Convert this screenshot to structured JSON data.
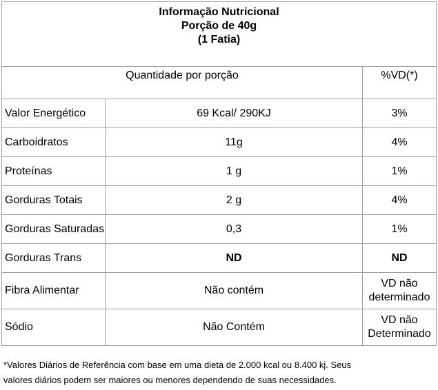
{
  "title": {
    "line1": "Informação Nutricional",
    "line2": "Porção de 40g",
    "line3": "(1 Fatia)"
  },
  "header": {
    "quantity": "Quantidade por porção",
    "vd": "%VD(*)"
  },
  "rows": [
    {
      "name": "Valor Energético",
      "qty": "69 Kcal/ 290KJ",
      "vd": "3%"
    },
    {
      "name": "Carboidratos",
      "qty": "11g",
      "vd": "4%"
    },
    {
      "name": "Proteínas",
      "qty": "1 g",
      "vd": "1%"
    },
    {
      "name": "Gorduras Totais",
      "qty": "2 g",
      "vd": "4%"
    },
    {
      "name": "Gorduras Saturadas",
      "qty": "0,3",
      "vd": "1%"
    },
    {
      "name": "Gorduras Trans",
      "qty": "ND",
      "vd": "ND"
    },
    {
      "name": "Fibra Alimentar",
      "qty": "Não contém",
      "vd_line1": "VD não",
      "vd_line2": "determinado"
    },
    {
      "name": "Sódio",
      "qty": "Não Contém",
      "vd_line1": "VD não",
      "vd_line2": "Determinado"
    }
  ],
  "footnote": {
    "line1": "*Valores Diários de Referência com base em uma dieta de 2.000 kcal ou 8.400 kj. Seus",
    "line2": "valores diários podem ser maiores ou menores dependendo de suas necessidades."
  }
}
